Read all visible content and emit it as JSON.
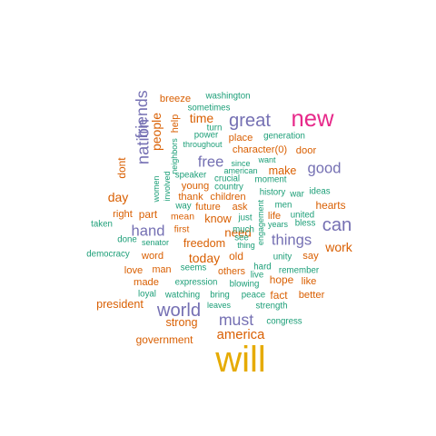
{
  "chart_data": {
    "type": "wordcloud",
    "title": "",
    "colors": {
      "orange": "#d95f02",
      "teal": "#1b9e77",
      "purple": "#7570b3",
      "pink": "#e7298a",
      "gold": "#e6ab02"
    },
    "words": [
      {
        "text": "will",
        "freq": 100,
        "color": "gold",
        "vertical": false
      },
      {
        "text": "new",
        "freq": 60,
        "color": "pink",
        "vertical": false
      },
      {
        "text": "can",
        "freq": 45,
        "color": "purple",
        "vertical": false
      },
      {
        "text": "great",
        "freq": 45,
        "color": "purple",
        "vertical": false
      },
      {
        "text": "world",
        "freq": 45,
        "color": "purple",
        "vertical": false
      },
      {
        "text": "nation",
        "freq": 40,
        "color": "purple",
        "vertical": true
      },
      {
        "text": "friends",
        "freq": 38,
        "color": "purple",
        "vertical": true
      },
      {
        "text": "must",
        "freq": 38,
        "color": "purple",
        "vertical": false
      },
      {
        "text": "good",
        "freq": 35,
        "color": "purple",
        "vertical": false
      },
      {
        "text": "free",
        "freq": 35,
        "color": "purple",
        "vertical": false
      },
      {
        "text": "things",
        "freq": 35,
        "color": "purple",
        "vertical": false
      },
      {
        "text": "hand",
        "freq": 35,
        "color": "purple",
        "vertical": false
      },
      {
        "text": "america",
        "freq": 30,
        "color": "orange",
        "vertical": false
      },
      {
        "text": "people",
        "freq": 28,
        "color": "orange",
        "vertical": true
      },
      {
        "text": "time",
        "freq": 28,
        "color": "orange",
        "vertical": false
      },
      {
        "text": "work",
        "freq": 28,
        "color": "orange",
        "vertical": false
      },
      {
        "text": "today",
        "freq": 28,
        "color": "orange",
        "vertical": false
      },
      {
        "text": "day",
        "freq": 28,
        "color": "orange",
        "vertical": false
      },
      {
        "text": "need",
        "freq": 26,
        "color": "orange",
        "vertical": false
      },
      {
        "text": "freedom",
        "freq": 24,
        "color": "orange",
        "vertical": false
      },
      {
        "text": "president",
        "freq": 24,
        "color": "orange",
        "vertical": false
      },
      {
        "text": "strong",
        "freq": 24,
        "color": "orange",
        "vertical": false
      },
      {
        "text": "make",
        "freq": 24,
        "color": "orange",
        "vertical": false
      },
      {
        "text": "know",
        "freq": 24,
        "color": "orange",
        "vertical": false
      },
      {
        "text": "dont",
        "freq": 22,
        "color": "orange",
        "vertical": true
      },
      {
        "text": "hearts",
        "freq": 22,
        "color": "orange",
        "vertical": false
      },
      {
        "text": "government",
        "freq": 22,
        "color": "orange",
        "vertical": false
      },
      {
        "text": "old",
        "freq": 22,
        "color": "orange",
        "vertical": false
      },
      {
        "text": "hope",
        "freq": 22,
        "color": "orange",
        "vertical": false
      },
      {
        "text": "fact",
        "freq": 22,
        "color": "orange",
        "vertical": false
      },
      {
        "text": "part",
        "freq": 22,
        "color": "orange",
        "vertical": false
      },
      {
        "text": "breeze",
        "freq": 20,
        "color": "orange",
        "vertical": false
      },
      {
        "text": "help",
        "freq": 19,
        "color": "orange",
        "vertical": true
      },
      {
        "text": "character(0)",
        "freq": 20,
        "color": "orange",
        "vertical": false
      },
      {
        "text": "place",
        "freq": 20,
        "color": "orange",
        "vertical": false
      },
      {
        "text": "door",
        "freq": 20,
        "color": "orange",
        "vertical": false
      },
      {
        "text": "young",
        "freq": 20,
        "color": "orange",
        "vertical": false
      },
      {
        "text": "thank",
        "freq": 20,
        "color": "orange",
        "vertical": false
      },
      {
        "text": "children",
        "freq": 20,
        "color": "orange",
        "vertical": false
      },
      {
        "text": "right",
        "freq": 20,
        "color": "orange",
        "vertical": false
      },
      {
        "text": "word",
        "freq": 20,
        "color": "orange",
        "vertical": false
      },
      {
        "text": "love",
        "freq": 20,
        "color": "orange",
        "vertical": false
      },
      {
        "text": "made",
        "freq": 20,
        "color": "orange",
        "vertical": false
      },
      {
        "text": "like",
        "freq": 20,
        "color": "orange",
        "vertical": false
      },
      {
        "text": "better",
        "freq": 20,
        "color": "orange",
        "vertical": false
      },
      {
        "text": "say",
        "freq": 20,
        "color": "orange",
        "vertical": false
      },
      {
        "text": "life",
        "freq": 20,
        "color": "orange",
        "vertical": false
      },
      {
        "text": "man",
        "freq": 19,
        "color": "orange",
        "vertical": false
      },
      {
        "text": "others",
        "freq": 19,
        "color": "orange",
        "vertical": false
      },
      {
        "text": "ask",
        "freq": 19,
        "color": "orange",
        "vertical": false
      },
      {
        "text": "future",
        "freq": 19,
        "color": "orange",
        "vertical": false
      },
      {
        "text": "first",
        "freq": 18,
        "color": "orange",
        "vertical": false
      },
      {
        "text": "mean",
        "freq": 18,
        "color": "orange",
        "vertical": false
      },
      {
        "text": "washington",
        "freq": 16,
        "color": "teal",
        "vertical": false
      },
      {
        "text": "sometimes",
        "freq": 16,
        "color": "teal",
        "vertical": false
      },
      {
        "text": "turn",
        "freq": 16,
        "color": "teal",
        "vertical": false
      },
      {
        "text": "power",
        "freq": 16,
        "color": "teal",
        "vertical": false
      },
      {
        "text": "generation",
        "freq": 16,
        "color": "teal",
        "vertical": false
      },
      {
        "text": "throughout",
        "freq": 14,
        "color": "teal",
        "vertical": false
      },
      {
        "text": "neighbors",
        "freq": 14,
        "color": "teal",
        "vertical": true
      },
      {
        "text": "involved",
        "freq": 14,
        "color": "teal",
        "vertical": true
      },
      {
        "text": "women",
        "freq": 14,
        "color": "teal",
        "vertical": true
      },
      {
        "text": "want",
        "freq": 14,
        "color": "teal",
        "vertical": false
      },
      {
        "text": "since",
        "freq": 14,
        "color": "teal",
        "vertical": false
      },
      {
        "text": "american",
        "freq": 14,
        "color": "teal",
        "vertical": false
      },
      {
        "text": "moment",
        "freq": 16,
        "color": "teal",
        "vertical": false
      },
      {
        "text": "speaker",
        "freq": 16,
        "color": "teal",
        "vertical": false
      },
      {
        "text": "crucial",
        "freq": 16,
        "color": "teal",
        "vertical": false
      },
      {
        "text": "country",
        "freq": 16,
        "color": "teal",
        "vertical": false
      },
      {
        "text": "history",
        "freq": 16,
        "color": "teal",
        "vertical": false
      },
      {
        "text": "war",
        "freq": 16,
        "color": "teal",
        "vertical": false
      },
      {
        "text": "ideas",
        "freq": 16,
        "color": "teal",
        "vertical": false
      },
      {
        "text": "men",
        "freq": 16,
        "color": "teal",
        "vertical": false
      },
      {
        "text": "way",
        "freq": 16,
        "color": "teal",
        "vertical": false
      },
      {
        "text": "engagement",
        "freq": 14,
        "color": "teal",
        "vertical": true
      },
      {
        "text": "united",
        "freq": 16,
        "color": "teal",
        "vertical": false
      },
      {
        "text": "bless",
        "freq": 16,
        "color": "teal",
        "vertical": false
      },
      {
        "text": "years",
        "freq": 14,
        "color": "teal",
        "vertical": false
      },
      {
        "text": "taken",
        "freq": 16,
        "color": "teal",
        "vertical": false
      },
      {
        "text": "just",
        "freq": 16,
        "color": "teal",
        "vertical": false
      },
      {
        "text": "much",
        "freq": 16,
        "color": "teal",
        "vertical": false
      },
      {
        "text": "see",
        "freq": 16,
        "color": "teal",
        "vertical": false
      },
      {
        "text": "thing",
        "freq": 14,
        "color": "teal",
        "vertical": false
      },
      {
        "text": "done",
        "freq": 16,
        "color": "teal",
        "vertical": false
      },
      {
        "text": "senator",
        "freq": 14,
        "color": "teal",
        "vertical": false
      },
      {
        "text": "democracy",
        "freq": 16,
        "color": "teal",
        "vertical": false
      },
      {
        "text": "unity",
        "freq": 16,
        "color": "teal",
        "vertical": false
      },
      {
        "text": "seems",
        "freq": 16,
        "color": "teal",
        "vertical": false
      },
      {
        "text": "hard",
        "freq": 16,
        "color": "teal",
        "vertical": false
      },
      {
        "text": "remember",
        "freq": 16,
        "color": "teal",
        "vertical": false
      },
      {
        "text": "live",
        "freq": 16,
        "color": "teal",
        "vertical": false
      },
      {
        "text": "expression",
        "freq": 16,
        "color": "teal",
        "vertical": false
      },
      {
        "text": "blowing",
        "freq": 16,
        "color": "teal",
        "vertical": false
      },
      {
        "text": "loyal",
        "freq": 16,
        "color": "teal",
        "vertical": false
      },
      {
        "text": "watching",
        "freq": 16,
        "color": "teal",
        "vertical": false
      },
      {
        "text": "bring",
        "freq": 16,
        "color": "teal",
        "vertical": false
      },
      {
        "text": "peace",
        "freq": 16,
        "color": "teal",
        "vertical": false
      },
      {
        "text": "leaves",
        "freq": 14,
        "color": "teal",
        "vertical": false
      },
      {
        "text": "strength",
        "freq": 16,
        "color": "teal",
        "vertical": false
      },
      {
        "text": "congress",
        "freq": 16,
        "color": "teal",
        "vertical": false
      }
    ]
  }
}
